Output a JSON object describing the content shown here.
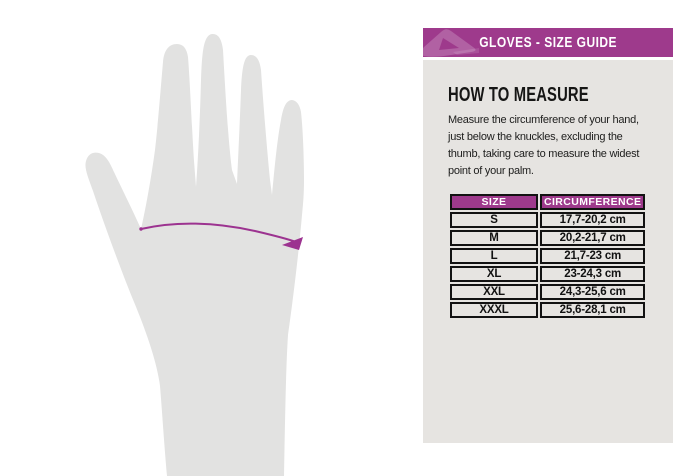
{
  "colors": {
    "accent": "#9e3a8c",
    "accent_logo_tint": "rgba(255,255,255,0.20)",
    "panel_bg": "#e6e4e1",
    "hand_fill": "#e2e2e1",
    "arrow": "#9c3390",
    "heading_text": "#161615",
    "body_text": "#20201f",
    "table_border": "#121212",
    "table_header_text": "#ffffff"
  },
  "banner": {
    "title": "GLOVES - SIZE GUIDE",
    "logo": "acerbis-logo"
  },
  "guide": {
    "heading": "HOW TO MEASURE",
    "lines": [
      "Measure the circumference of your hand,",
      "just below the knuckles, excluding the",
      "thumb, taking care to measure the widest",
      "point of your palm."
    ]
  },
  "size_table": {
    "columns": [
      "SIZE",
      "CIRCUMFERENCE"
    ],
    "rows": [
      [
        "S",
        "17,7-20,2 cm"
      ],
      [
        "M",
        "20,2-21,7 cm"
      ],
      [
        "L",
        "21,7-23 cm"
      ],
      [
        "XL",
        "23-24,3 cm"
      ],
      [
        "XXL",
        "24,3-25,6 cm"
      ],
      [
        "XXXL",
        "25,6-28,1 cm"
      ]
    ]
  },
  "illustration": {
    "name": "hand-with-measuring-line",
    "annotation": "palm-circumference-arrow"
  }
}
